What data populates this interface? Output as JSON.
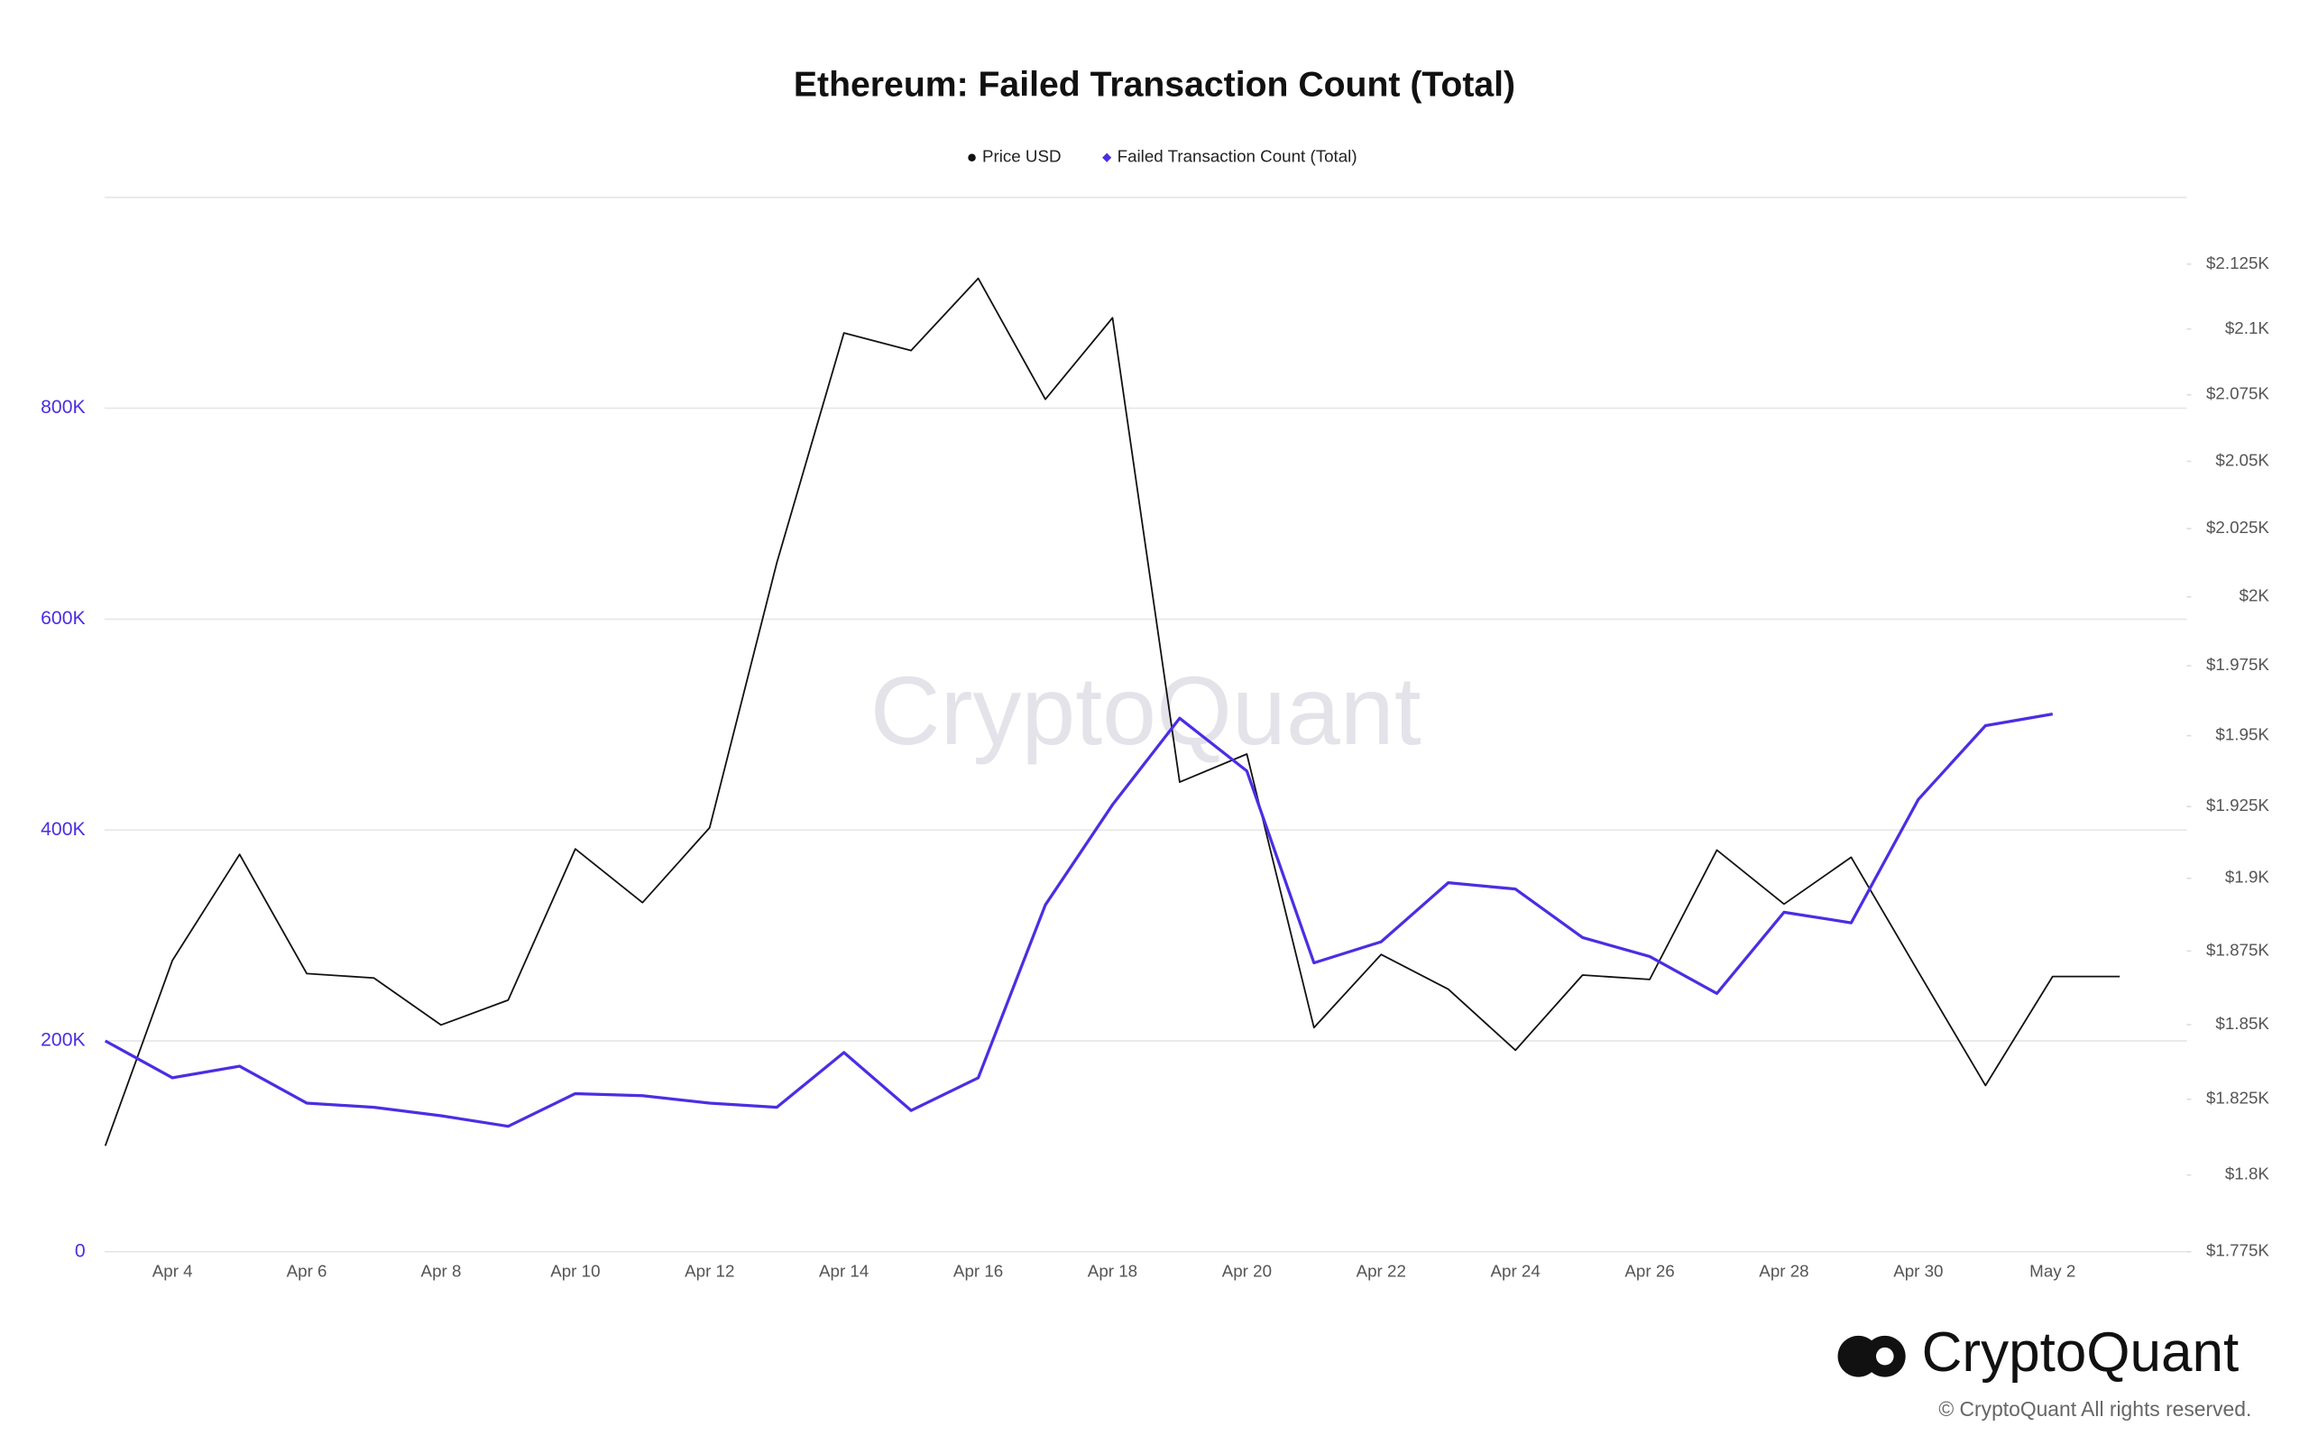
{
  "chart_data": {
    "type": "line",
    "title": "Ethereum: Failed Transaction Count (Total)",
    "watermark": "CryptoQuant",
    "logo_text": "CryptoQuant",
    "copyright": "© CryptoQuant All rights reserved.",
    "categories": [
      null,
      "Apr 4",
      null,
      "Apr 6",
      null,
      "Apr 8",
      null,
      "Apr 10",
      null,
      "Apr 12",
      null,
      "Apr 14",
      null,
      "Apr 16",
      null,
      "Apr 18",
      null,
      "Apr 20",
      null,
      "Apr 22",
      null,
      "Apr 24",
      null,
      "Apr 26",
      null,
      "Apr 28",
      null,
      "Apr 30",
      null,
      "May 2",
      null
    ],
    "series": [
      {
        "name": "Price USD",
        "color": "#111111",
        "axis": "y2",
        "marker": "circle",
        "values": [
          1809.6,
          1871.8,
          1908.3,
          1867.3,
          1865.8,
          1849.9,
          1858.3,
          1910.2,
          1891.6,
          1917.6,
          2012.4,
          2098.5,
          2091.8,
          2119.5,
          2073.3,
          2104.3,
          1933.6,
          1943.5,
          1849.0,
          1873.8,
          1862.0,
          1841.4,
          1866.8,
          1865.3,
          1909.8,
          1891.1,
          1907.3,
          1867.9,
          1829.6,
          1866.3,
          1866.3
        ]
      },
      {
        "name": "Failed Transaction Count (Total)",
        "color": "#4b2ee3",
        "axis": "y",
        "marker": "diamond",
        "values": [
          200000,
          165000,
          176000,
          141000,
          137000,
          129000,
          119000,
          150000,
          148000,
          141000,
          137000,
          189000,
          134000,
          165000,
          329000,
          424000,
          506000,
          456000,
          274000,
          294000,
          350000,
          344000,
          298000,
          280000,
          245000,
          322000,
          312000,
          429000,
          499000,
          510000,
          null
        ]
      }
    ],
    "ylim": [
      0,
      1000000
    ],
    "yticks": [
      0,
      {
        "value": 200000,
        "label": "200K"
      },
      {
        "value": 400000,
        "label": "400K"
      },
      {
        "value": 600000,
        "label": "600K"
      },
      {
        "value": 800000,
        "label": "800K"
      }
    ],
    "y2lim": [
      1775,
      2151
    ],
    "y2log": true,
    "y2ticks": [
      {
        "value": 1775,
        "label": "$1.775K"
      },
      {
        "value": 1800,
        "label": "$1.8K"
      },
      {
        "value": 1825,
        "label": "$1.825K"
      },
      {
        "value": 1850,
        "label": "$1.85K"
      },
      {
        "value": 1875,
        "label": "$1.875K"
      },
      {
        "value": 1900,
        "label": "$1.9K"
      },
      {
        "value": 1925,
        "label": "$1.925K"
      },
      {
        "value": 1950,
        "label": "$1.95K"
      },
      {
        "value": 1975,
        "label": "$1.975K"
      },
      {
        "value": 2000,
        "label": "$2K"
      },
      {
        "value": 2025,
        "label": "$2.025K"
      },
      {
        "value": 2050,
        "label": "$2.05K"
      },
      {
        "value": 2075,
        "label": "$2.075K"
      },
      {
        "value": 2100,
        "label": "$2.1K"
      },
      {
        "value": 2125,
        "label": "$2.125K"
      }
    ],
    "yaxis_color": "#4b2ee3",
    "y2axis_color": "#555555",
    "grid": true,
    "legend": "top"
  }
}
